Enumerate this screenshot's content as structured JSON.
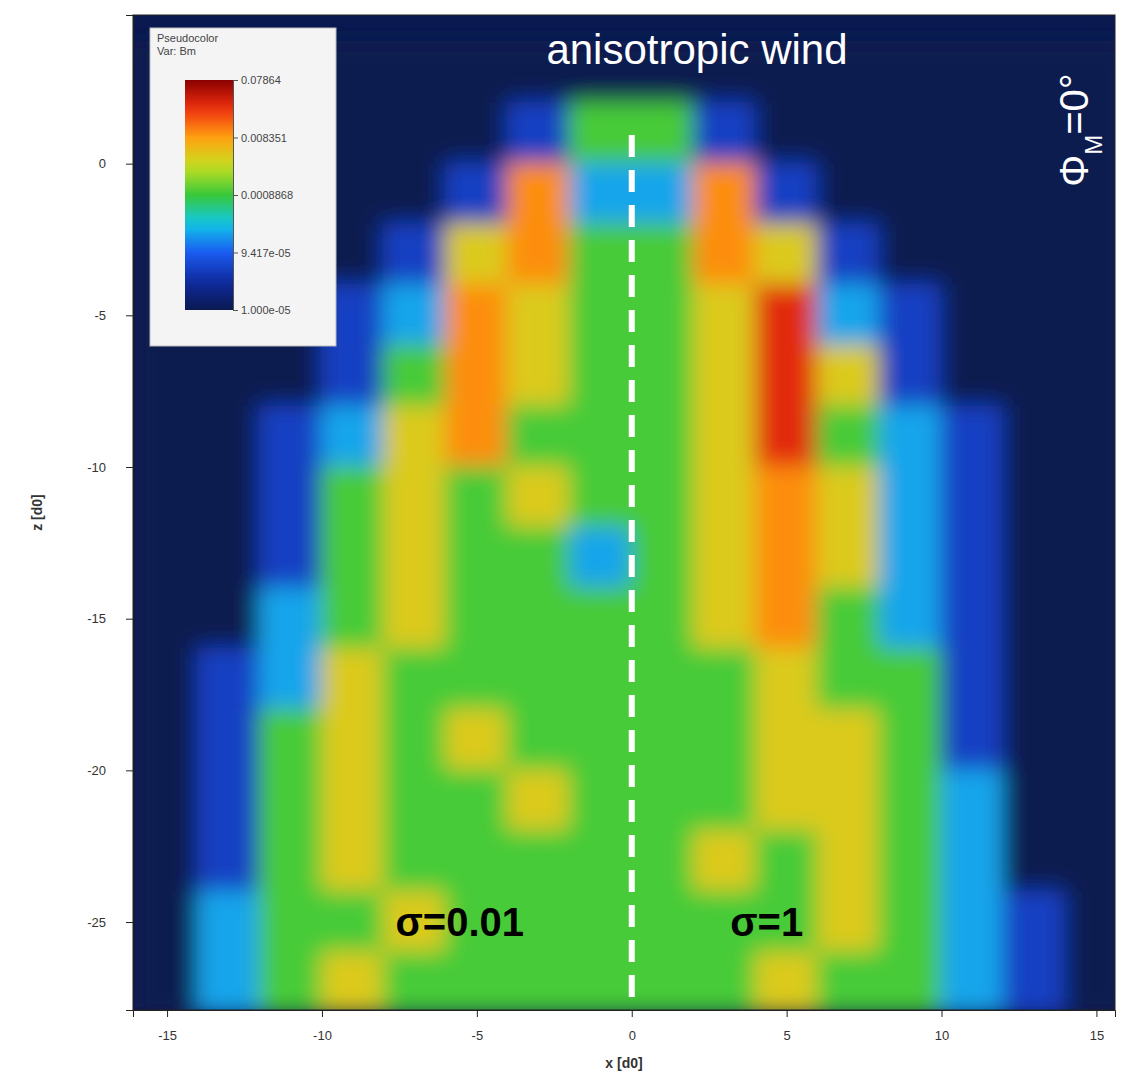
{
  "chart_data": {
    "type": "heatmap",
    "title": "anisotropic wind",
    "corner_label": {
      "base": "Φ",
      "sub": "M",
      "rest": "=0°"
    },
    "annotations": [
      "σ=0.01",
      "σ=1"
    ],
    "divider": {
      "x": 0
    },
    "xlabel": "x [d0]",
    "ylabel": "z [d0]",
    "xlim": [
      -16.1,
      15.6
    ],
    "ylim": [
      -27.9,
      4.9
    ],
    "xticks": [
      -15,
      -10,
      -5,
      0,
      5,
      10,
      15
    ],
    "yticks": [
      -25,
      -20,
      -15,
      -10,
      -5,
      0
    ],
    "colorbar": {
      "title": "Pseudocolor",
      "var": "Var: Bm",
      "log": true,
      "range": [
        1e-05,
        0.07864
      ],
      "ticks": [
        0.07864,
        0.008351,
        0.0008868,
        {
          "value": 9.417e-05,
          "label": "9.417e-05"
        },
        {
          "value": 1e-05,
          "label": "1.000e-05"
        }
      ]
    },
    "cells": {
      "x": [
        -15,
        -13,
        -11,
        -9,
        -7,
        -5,
        -3,
        -1,
        1,
        3,
        5,
        7,
        9,
        11,
        13,
        15
      ],
      "z": [
        3,
        1,
        -1,
        -3,
        -5,
        -7,
        -9,
        -11,
        -13,
        -15,
        -17,
        -19,
        -21,
        -23,
        -25,
        -27
      ],
      "values": [
        [
          1e-05,
          1e-05,
          1e-05,
          1e-05,
          1e-05,
          1e-05,
          1e-05,
          1e-05,
          1e-05,
          1e-05,
          1e-05,
          1e-05,
          1e-05,
          1e-05,
          1e-05,
          1e-05
        ],
        [
          1e-05,
          1e-05,
          1e-05,
          1e-05,
          1e-05,
          1e-05,
          5e-05,
          0.001,
          0.001,
          5e-05,
          1e-05,
          1e-05,
          1e-05,
          1e-05,
          1e-05,
          1e-05
        ],
        [
          1e-05,
          1e-05,
          1e-05,
          1e-05,
          1e-05,
          5e-05,
          0.01,
          0.0002,
          0.0002,
          0.01,
          5e-05,
          1e-05,
          1e-05,
          1e-05,
          1e-05,
          1e-05
        ],
        [
          1e-05,
          1e-05,
          1e-05,
          1e-05,
          5e-05,
          0.004,
          0.01,
          0.001,
          0.001,
          0.01,
          0.004,
          5e-05,
          1e-05,
          1e-05,
          1e-05,
          1e-05
        ],
        [
          1e-05,
          1e-05,
          1e-05,
          5e-05,
          0.0002,
          0.01,
          0.004,
          0.001,
          0.001,
          0.004,
          0.03,
          0.0002,
          5e-05,
          1e-05,
          1e-05,
          1e-05
        ],
        [
          1e-05,
          1e-05,
          1e-05,
          5e-05,
          0.001,
          0.01,
          0.004,
          0.001,
          0.001,
          0.004,
          0.03,
          0.004,
          5e-05,
          1e-05,
          1e-05,
          1e-05
        ],
        [
          1e-05,
          1e-05,
          5e-05,
          0.0002,
          0.004,
          0.01,
          0.001,
          0.001,
          0.001,
          0.004,
          0.03,
          0.001,
          0.0002,
          5e-05,
          1e-05,
          1e-05
        ],
        [
          1e-05,
          1e-05,
          5e-05,
          0.001,
          0.004,
          0.001,
          0.004,
          0.001,
          0.001,
          0.004,
          0.01,
          0.004,
          0.0002,
          5e-05,
          1e-05,
          1e-05
        ],
        [
          1e-05,
          1e-05,
          5e-05,
          0.001,
          0.004,
          0.001,
          0.001,
          0.0002,
          0.001,
          0.004,
          0.01,
          0.004,
          0.0002,
          5e-05,
          1e-05,
          1e-05
        ],
        [
          1e-05,
          1e-05,
          0.0002,
          0.001,
          0.004,
          0.001,
          0.001,
          0.001,
          0.001,
          0.004,
          0.01,
          0.001,
          0.0002,
          5e-05,
          1e-05,
          1e-05
        ],
        [
          1e-05,
          5e-05,
          0.0002,
          0.004,
          0.001,
          0.001,
          0.001,
          0.001,
          0.001,
          0.001,
          0.004,
          0.001,
          0.001,
          5e-05,
          1e-05,
          1e-05
        ],
        [
          1e-05,
          5e-05,
          0.001,
          0.004,
          0.001,
          0.004,
          0.001,
          0.001,
          0.001,
          0.001,
          0.004,
          0.004,
          0.001,
          5e-05,
          1e-05,
          1e-05
        ],
        [
          1e-05,
          5e-05,
          0.001,
          0.004,
          0.001,
          0.001,
          0.004,
          0.001,
          0.001,
          0.001,
          0.004,
          0.004,
          0.001,
          0.0002,
          1e-05,
          1e-05
        ],
        [
          1e-05,
          5e-05,
          0.001,
          0.004,
          0.001,
          0.001,
          0.001,
          0.001,
          0.001,
          0.004,
          0.001,
          0.004,
          0.001,
          0.0002,
          1e-05,
          1e-05
        ],
        [
          1e-05,
          0.0002,
          0.001,
          0.001,
          0.004,
          0.001,
          0.001,
          0.001,
          0.001,
          0.001,
          0.001,
          0.004,
          0.001,
          0.0002,
          5e-05,
          1e-05
        ],
        [
          1e-05,
          0.0002,
          0.001,
          0.004,
          0.001,
          0.001,
          0.001,
          0.001,
          0.001,
          0.001,
          0.004,
          0.001,
          0.001,
          0.0002,
          5e-05,
          1e-05
        ]
      ]
    }
  }
}
